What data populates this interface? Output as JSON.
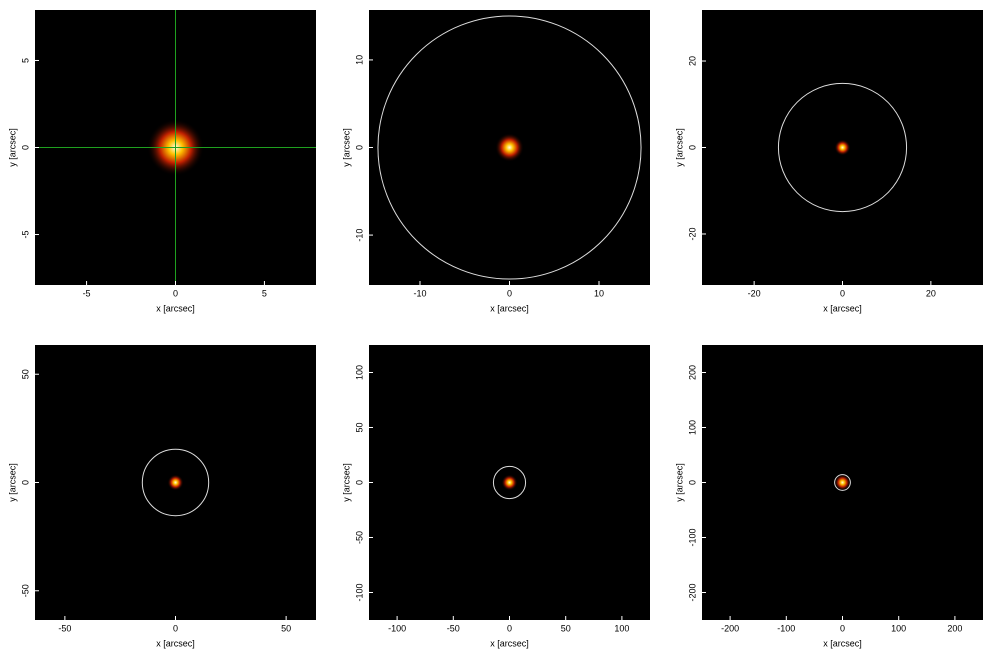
{
  "chart_data": [
    {
      "type": "image",
      "xlabel": "x [arcsec]",
      "ylabel": "y [arcsec]",
      "xlim": [
        -7.9,
        7.9
      ],
      "ylim": [
        -7.9,
        7.9
      ],
      "xticks": [
        -5,
        0,
        5
      ],
      "yticks": [
        -5,
        0,
        5
      ],
      "crosshair": {
        "x": 0,
        "y": 0,
        "color": "#1fa01f"
      }
    },
    {
      "type": "image",
      "xlabel": "x [arcsec]",
      "ylabel": "y [arcsec]",
      "xlim": [
        -15.7,
        15.7
      ],
      "ylim": [
        -15.7,
        15.7
      ],
      "xticks": [
        -10,
        0,
        10
      ],
      "yticks": [
        -10,
        0,
        10
      ],
      "circle": {
        "x": 0,
        "y": 0,
        "r": 14.7
      }
    },
    {
      "type": "image",
      "xlabel": "x [arcsec]",
      "ylabel": "y [arcsec]",
      "xlim": [
        -31.8,
        31.8
      ],
      "ylim": [
        -31.8,
        31.8
      ],
      "xticks": [
        -20,
        0,
        20
      ],
      "yticks": [
        -20,
        0,
        20
      ],
      "circle": {
        "x": 0,
        "y": 0,
        "r": 14.5
      }
    },
    {
      "type": "image",
      "xlabel": "x [arcsec]",
      "ylabel": "y [arcsec]",
      "xlim": [
        -63.5,
        63.5
      ],
      "ylim": [
        -63.5,
        63.5
      ],
      "xticks": [
        -50,
        0,
        50
      ],
      "yticks": [
        -50,
        0,
        50
      ],
      "circle": {
        "x": 0,
        "y": 0,
        "r": 15
      }
    },
    {
      "type": "image",
      "xlabel": "x [arcsec]",
      "ylabel": "y [arcsec]",
      "xlim": [
        -125,
        125
      ],
      "ylim": [
        -125,
        125
      ],
      "xticks": [
        -100,
        -50,
        0,
        50,
        100
      ],
      "yticks": [
        -100,
        -50,
        0,
        50,
        100
      ],
      "circle": {
        "x": 0,
        "y": 0,
        "r": 14.3
      }
    },
    {
      "type": "image",
      "xlabel": "x [arcsec]",
      "ylabel": "y [arcsec]",
      "xlim": [
        -250,
        250
      ],
      "ylim": [
        -250,
        250
      ],
      "xticks": [
        -200,
        -100,
        0,
        100,
        200
      ],
      "yticks": [
        -200,
        -100,
        0,
        100,
        200
      ],
      "circle": {
        "x": 0,
        "y": 0,
        "r": 14
      }
    }
  ]
}
